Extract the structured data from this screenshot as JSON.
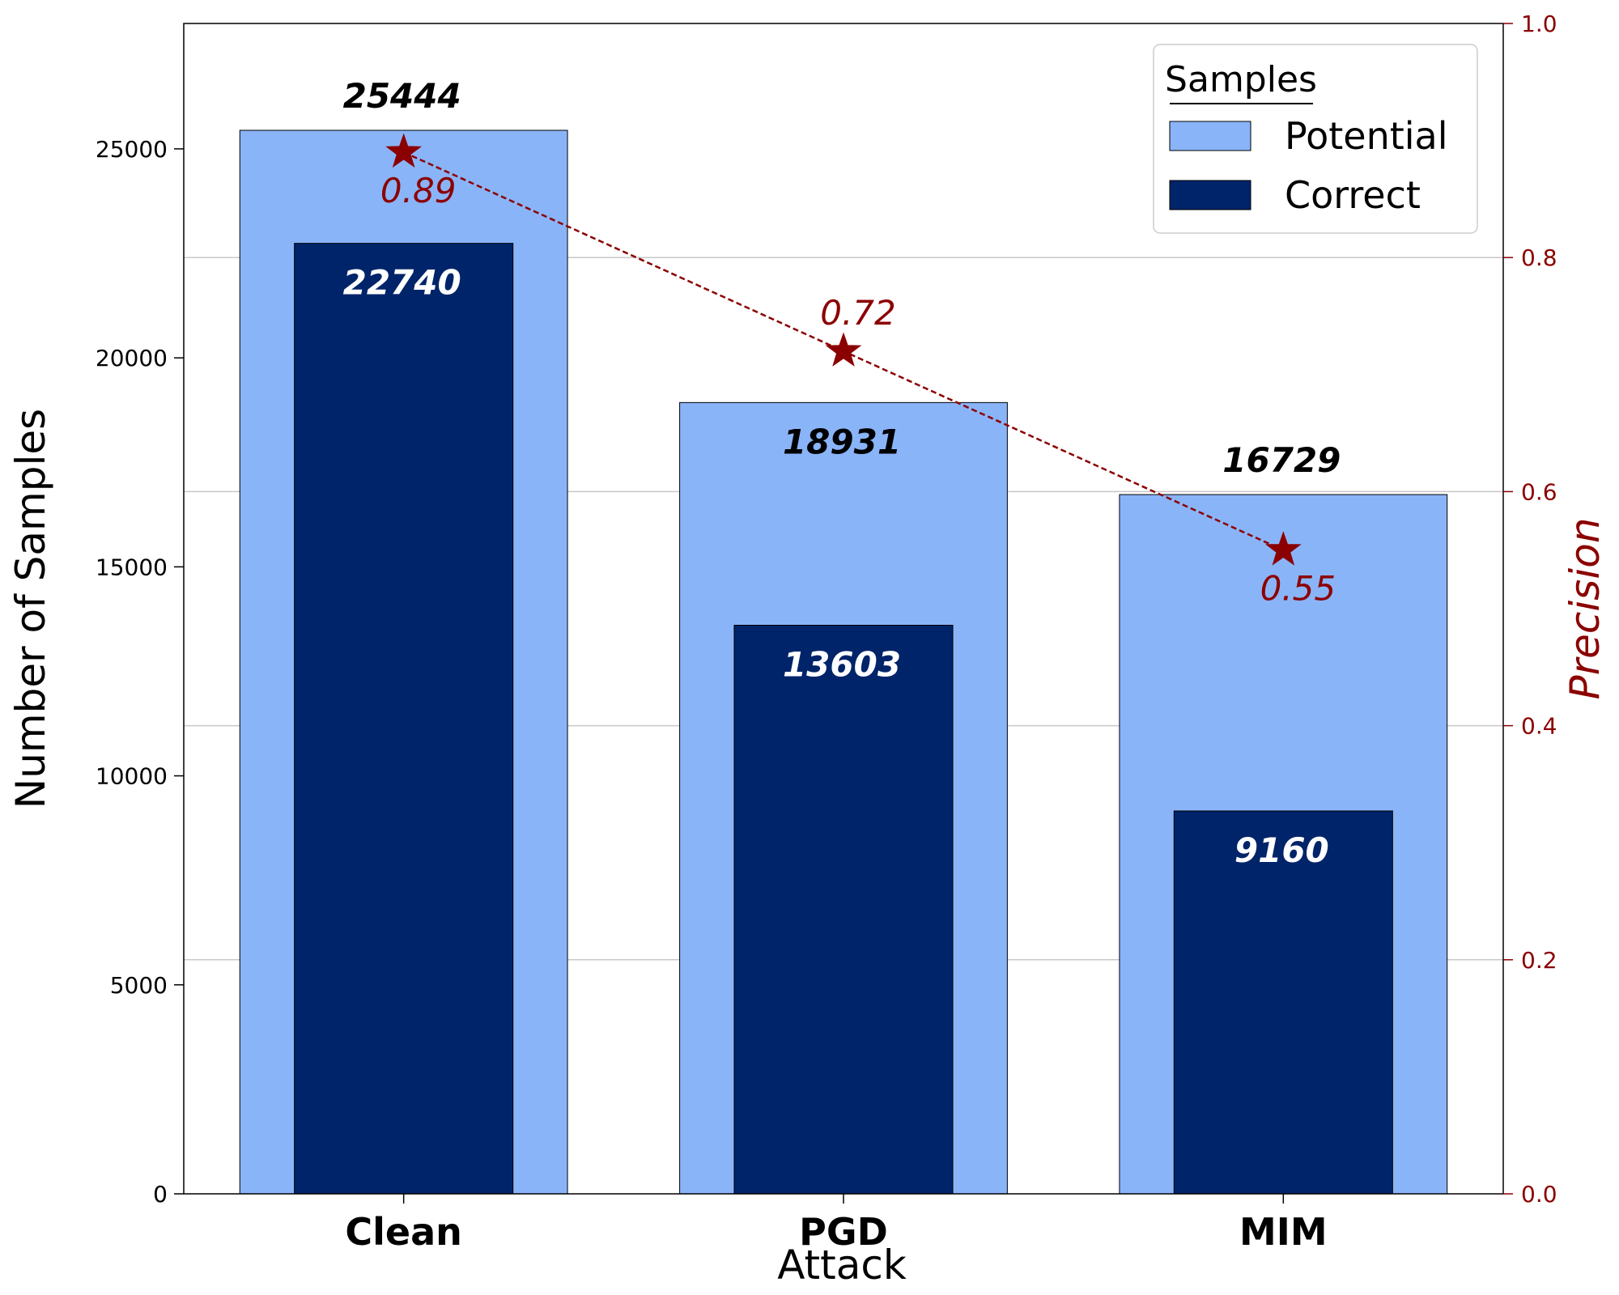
{
  "chart_data": {
    "type": "bar",
    "categories": [
      "Clean",
      "PGD",
      "MIM"
    ],
    "xlabel": "Attack",
    "ylabel": "Number of Samples",
    "y2label": "Precision",
    "ylim": [
      0,
      28000
    ],
    "y2lim": [
      0,
      1.0
    ],
    "yticks": [
      0,
      5000,
      10000,
      15000,
      20000,
      25000
    ],
    "y2ticks": [
      0.0,
      0.2,
      0.4,
      0.6,
      0.8,
      1.0
    ],
    "grid": "horizontal",
    "legend_title": "Samples",
    "legend_position": "top-right",
    "series": [
      {
        "name": "Potential",
        "values": [
          25444,
          18931,
          16729
        ],
        "labels": [
          "25444",
          "18931",
          "16729"
        ],
        "color": "#8ab4f8"
      },
      {
        "name": "Correct",
        "values": [
          22740,
          13603,
          9160
        ],
        "labels": [
          "22740",
          "13603",
          "9160"
        ],
        "color": "#002469"
      }
    ],
    "precision": {
      "values": [
        0.89,
        0.72,
        0.55
      ],
      "labels": [
        "0.89",
        "0.72",
        "0.55"
      ],
      "color": "#8b0000"
    }
  }
}
